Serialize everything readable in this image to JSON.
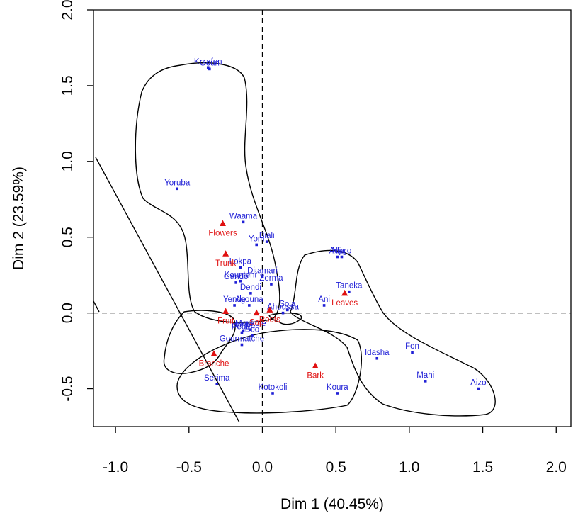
{
  "chart_data": {
    "type": "scatter",
    "xlabel": "Dim 1 (40.45%)",
    "ylabel": "Dim 2 (23.59%)",
    "xlim": [
      -1.15,
      2.1
    ],
    "ylim": [
      -0.75,
      2.0
    ],
    "xticks": [
      -1.0,
      -0.5,
      0.0,
      0.5,
      1.0,
      1.5,
      2.0
    ],
    "xtick_labels": [
      "-1.0",
      "-0.5",
      "0.0",
      "0.5",
      "1.0",
      "1.5",
      "2.0"
    ],
    "yticks": [
      -0.5,
      0.0,
      0.5,
      1.0,
      1.5,
      2.0
    ],
    "ytick_labels": [
      "-0.5",
      "0.0",
      "0.5",
      "1.0",
      "1.5",
      "2.0"
    ],
    "reference_lines": {
      "x": 0,
      "y": 0,
      "style": "dashed"
    },
    "colors": {
      "ethnic_groups": "#1f1fd6",
      "organs": "#e01010",
      "outline": "#000000"
    },
    "series": [
      {
        "marker": "square",
        "color": "#1f1fd6",
        "points": [
          {
            "label": "Kotafon",
            "x": -0.37,
            "y": 1.62
          },
          {
            "label": "Goun",
            "x": -0.36,
            "y": 1.61
          },
          {
            "label": "Yoruba",
            "x": -0.58,
            "y": 0.82
          },
          {
            "label": "Waama",
            "x": -0.13,
            "y": 0.6
          },
          {
            "label": "Biali",
            "x": 0.03,
            "y": 0.47
          },
          {
            "label": "Yom",
            "x": -0.04,
            "y": 0.45
          },
          {
            "label": "Lokpa",
            "x": -0.15,
            "y": 0.3
          },
          {
            "label": "Ditamari",
            "x": 0.0,
            "y": 0.24
          },
          {
            "label": "Kounteni",
            "x": -0.15,
            "y": 0.21
          },
          {
            "label": "Zerma",
            "x": 0.06,
            "y": 0.19
          },
          {
            "label": "Gando",
            "x": -0.18,
            "y": 0.2
          },
          {
            "label": "Dendi",
            "x": -0.08,
            "y": 0.13
          },
          {
            "label": "Yende",
            "x": -0.19,
            "y": 0.05
          },
          {
            "label": "Agouna",
            "x": -0.09,
            "y": 0.05
          },
          {
            "label": "Sola",
            "x": 0.17,
            "y": 0.02
          },
          {
            "label": "Ahoussa",
            "x": 0.14,
            "y": 0.0
          },
          {
            "label": "Bariba",
            "x": -0.13,
            "y": -0.12
          },
          {
            "label": "Monkole",
            "x": -0.08,
            "y": -0.11
          },
          {
            "label": "Peulh",
            "x": -0.14,
            "y": -0.13
          },
          {
            "label": "Boo",
            "x": -0.07,
            "y": -0.15
          },
          {
            "label": "Gourmatche",
            "x": -0.14,
            "y": -0.21
          },
          {
            "label": "Serima",
            "x": -0.31,
            "y": -0.47
          },
          {
            "label": "Kotokoli",
            "x": 0.07,
            "y": -0.53
          },
          {
            "label": "Koura",
            "x": 0.51,
            "y": -0.53
          },
          {
            "label": "Adja",
            "x": 0.51,
            "y": 0.37
          },
          {
            "label": "Nago",
            "x": 0.54,
            "y": 0.37
          },
          {
            "label": "Taneka",
            "x": 0.59,
            "y": 0.14
          },
          {
            "label": "Ani",
            "x": 0.42,
            "y": 0.05
          },
          {
            "label": "Idasha",
            "x": 0.78,
            "y": -0.3
          },
          {
            "label": "Fon",
            "x": 1.02,
            "y": -0.26
          },
          {
            "label": "Mahi",
            "x": 1.11,
            "y": -0.45
          },
          {
            "label": "Aizo",
            "x": 1.47,
            "y": -0.5
          }
        ]
      },
      {
        "marker": "triangle",
        "color": "#e01010",
        "points": [
          {
            "label": "Flowers",
            "x": -0.27,
            "y": 0.59
          },
          {
            "label": "Trunk",
            "x": -0.25,
            "y": 0.39
          },
          {
            "label": "Fruit",
            "x": -0.25,
            "y": 0.01
          },
          {
            "label": "Sap",
            "x": -0.04,
            "y": 0.0
          },
          {
            "label": "Roots",
            "x": 0.05,
            "y": 0.02
          },
          {
            "label": "Leaves",
            "x": 0.56,
            "y": 0.13
          },
          {
            "label": "Branche",
            "x": -0.33,
            "y": -0.27
          },
          {
            "label": "Bark",
            "x": 0.36,
            "y": -0.35
          }
        ]
      }
    ]
  }
}
